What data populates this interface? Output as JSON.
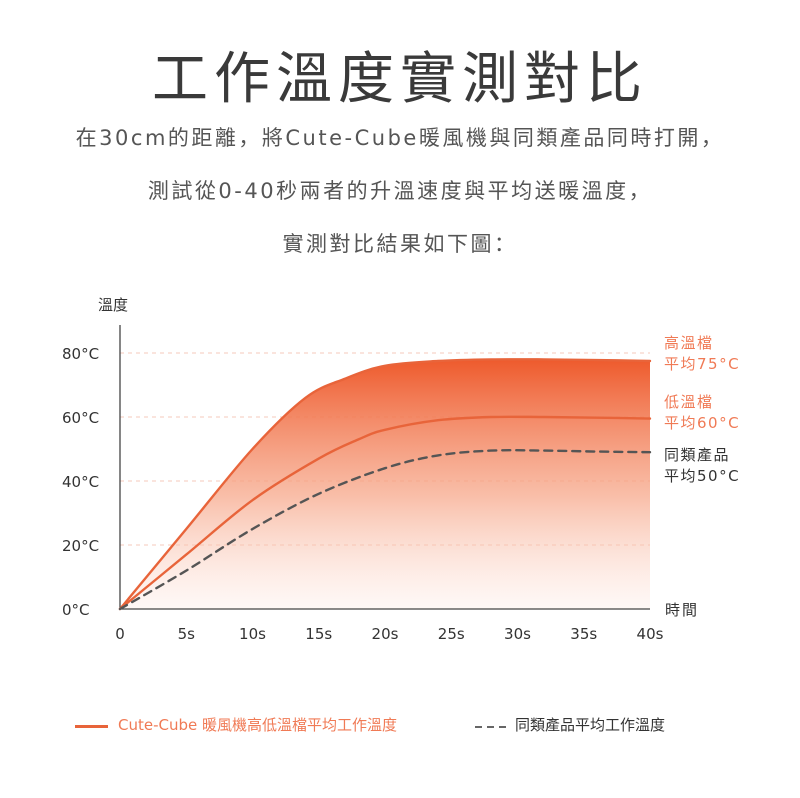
{
  "header": {
    "title": "工作溫度實測對比",
    "lines": [
      "在30cm的距離，將Cute-Cube暖風機與同類產品同時打開，",
      "測試從0-40秒兩者的升溫速度與平均送暖溫度，",
      "實測對比結果如下圖："
    ]
  },
  "colors": {
    "accent": "#e8643a",
    "accent_text": "#f07a55",
    "gray": "#555555",
    "grid": "#f6c9bb"
  },
  "chart_data": {
    "type": "line",
    "ylabel": "溫度",
    "xlabel": "時間",
    "y_ticks": [
      "0°C",
      "20°C",
      "40°C",
      "60°C",
      "80°C"
    ],
    "y_tick_values": [
      0,
      20,
      40,
      60,
      80
    ],
    "x_ticks": [
      "0",
      "5s",
      "10s",
      "15s",
      "20s",
      "25s",
      "30s",
      "35s",
      "40s"
    ],
    "x_tick_values": [
      0,
      5,
      10,
      15,
      20,
      25,
      30,
      35,
      40
    ],
    "xlim": [
      0,
      40
    ],
    "ylim": [
      0,
      80
    ],
    "grid": "dashed horizontal",
    "series": [
      {
        "key": "high",
        "style": "solid-orange",
        "x": [
          0,
          5,
          10,
          14,
          17,
          20,
          24,
          28,
          32,
          36,
          40
        ],
        "y": [
          0,
          25,
          50,
          66,
          72,
          76,
          77.5,
          78,
          78,
          77.8,
          77.5
        ]
      },
      {
        "key": "low",
        "style": "solid-orange",
        "x": [
          0,
          5,
          10,
          15,
          18,
          20,
          24,
          28,
          32,
          36,
          40
        ],
        "y": [
          0,
          17,
          34,
          47,
          53,
          56,
          59,
          60,
          60,
          59.8,
          59.5
        ]
      },
      {
        "key": "other",
        "style": "dashed-gray",
        "x": [
          0,
          5,
          10,
          15,
          20,
          24,
          28,
          32,
          36,
          40
        ],
        "y": [
          0,
          12,
          25,
          36,
          44,
          48,
          49.5,
          49.5,
          49.2,
          49
        ]
      }
    ],
    "annotations": {
      "high": [
        "高溫檔",
        "平均75°C"
      ],
      "low": [
        "低溫檔",
        "平均60°C"
      ],
      "other": [
        "同類產品",
        "平均50°C"
      ]
    },
    "legend": {
      "position": "bottom",
      "items": [
        "Cute-Cube 暖風機高低溫檔平均工作溫度",
        "同類產品平均工作溫度"
      ]
    }
  }
}
